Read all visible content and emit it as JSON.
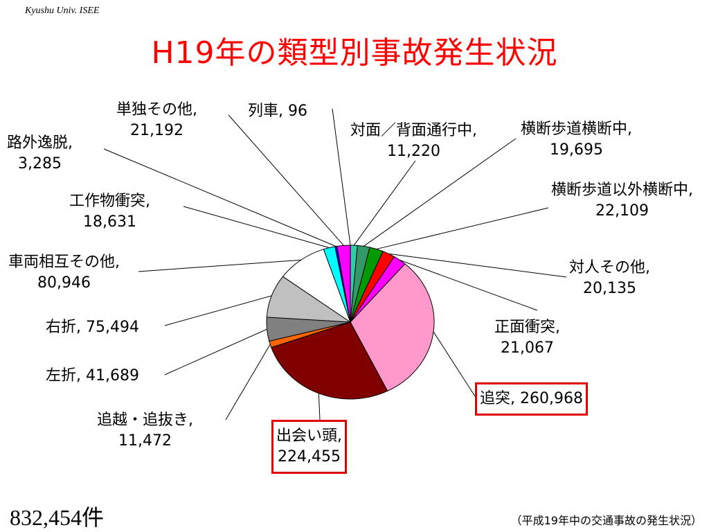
{
  "org": "Kyushu Univ. ISEE",
  "title": "H19年の類型別事故発生状況",
  "total": "832,454件",
  "source": "（平成19年中の交通事故の発生状況）",
  "chart_data": {
    "type": "pie",
    "slices": [
      {
        "name": "列車",
        "value": 96,
        "value_label": "96",
        "color": "#3333cc"
      },
      {
        "name": "対面／背面通行中",
        "value": 11220,
        "value_label": "11,220",
        "color": "#33ccaa"
      },
      {
        "name": "横断歩道横断中",
        "value": 19695,
        "value_label": "19,695",
        "color": "#339966"
      },
      {
        "name": "横断歩道以外横断中",
        "value": 22109,
        "value_label": "22,109",
        "color": "#009900"
      },
      {
        "name": "対人その他",
        "value": 20135,
        "value_label": "20,135",
        "color": "#ff0000"
      },
      {
        "name": "正面衝突",
        "value": 21067,
        "value_label": "21,067",
        "color": "#ff00ff"
      },
      {
        "name": "追突",
        "value": 260968,
        "value_label": "260,968",
        "color": "#ff99cc"
      },
      {
        "name": "出会い頭",
        "value": 224455,
        "value_label": "224,455",
        "color": "#800000"
      },
      {
        "name": "追越・追抜き",
        "value": 11472,
        "value_label": "11,472",
        "color": "#ff6600"
      },
      {
        "name": "左折",
        "value": 41689,
        "value_label": "41,689",
        "color": "#808080"
      },
      {
        "name": "右折",
        "value": 75494,
        "value_label": "75,494",
        "color": "#c0c0c0"
      },
      {
        "name": "車両相互その他",
        "value": 80946,
        "value_label": "80,946",
        "color": "#ffffff"
      },
      {
        "name": "工作物衝突",
        "value": 18631,
        "value_label": "18,631",
        "color": "#00ffff"
      },
      {
        "name": "路外逸脱",
        "value": 3285,
        "value_label": "3,285",
        "color": "#0000ff"
      },
      {
        "name": "単独その他",
        "value": 21192,
        "value_label": "21,192",
        "color": "#ff00ff"
      }
    ]
  }
}
